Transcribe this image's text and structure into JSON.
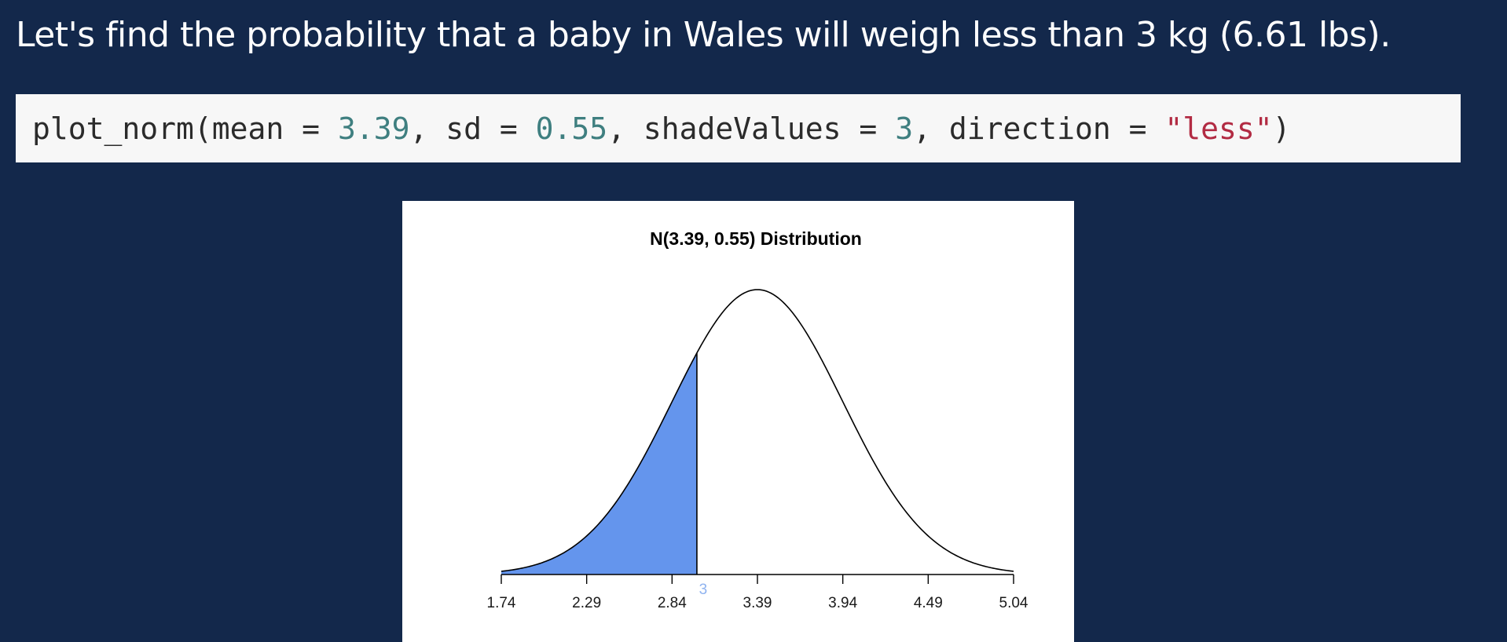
{
  "heading": "Let's find the probability that a baby in Wales will weigh less than 3 kg (6.61 lbs).",
  "code": {
    "fn": "plot_norm(",
    "mean_arg": "mean = ",
    "mean_val": "3.39",
    "sep1": ", ",
    "sd_arg": "sd = ",
    "sd_val": "0.55",
    "sep2": ", ",
    "shade_arg": "shadeValues = ",
    "shade_val": "3",
    "sep3": ", ",
    "dir_arg": "direction = ",
    "dir_val": "\"less\"",
    "close": ")"
  },
  "chart_data": {
    "type": "area",
    "title": "N(3.39, 0.55) Distribution",
    "distribution": "normal",
    "mean": 3.39,
    "sd": 0.55,
    "xlim": [
      1.74,
      5.04
    ],
    "x_ticks": [
      "1.74",
      "2.29",
      "2.84",
      "3.39",
      "3.94",
      "4.49",
      "5.04"
    ],
    "x_tick_values": [
      1.74,
      2.29,
      2.84,
      3.39,
      3.94,
      4.49,
      5.04
    ],
    "shade": {
      "value": 3,
      "label": "3",
      "direction": "less"
    },
    "colors": {
      "shade_fill": "#6495ed",
      "shade_label": "#8fb3f0",
      "curve": "#000000"
    }
  }
}
